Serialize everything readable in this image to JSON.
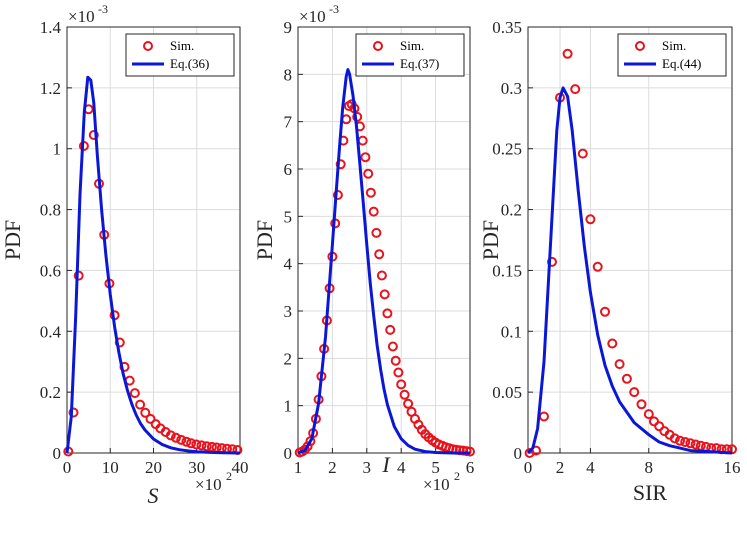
{
  "colors": {
    "sim": "#e8131c",
    "eq": "#0b17d8",
    "axis": "#262626",
    "grid": "#dcdcdc"
  },
  "chart_data": [
    {
      "type": "scatter",
      "title": "",
      "xlabel": "S",
      "ylabel": "PDF",
      "x_multiplier": "×10",
      "x_multiplier_exp": "2",
      "y_multiplier": "×10",
      "y_multiplier_exp": "-3",
      "xlim": [
        0,
        40
      ],
      "ylim": [
        0,
        1.4
      ],
      "xticks": [
        "0",
        "10",
        "20",
        "30",
        "40"
      ],
      "yticks": [
        "0",
        "0.2",
        "0.4",
        "0.6",
        "0.8",
        "1",
        "1.2",
        "1.4"
      ],
      "grid": true,
      "legend_position": "top-right",
      "series": [
        {
          "name": "Sim.",
          "style": "markers",
          "x": [
            0.3,
            1.5,
            2.7,
            3.9,
            5.0,
            6.2,
            7.4,
            8.6,
            9.8,
            11.0,
            12.2,
            13.3,
            14.5,
            15.7,
            16.9,
            18.1,
            19.3,
            20.5,
            21.6,
            22.8,
            24.0,
            25.2,
            26.4,
            27.6,
            28.7,
            29.9,
            31.1,
            32.3,
            33.5,
            34.6,
            35.8,
            37.0,
            38.2,
            39.4
          ],
          "y": [
            0.005,
            0.133,
            0.583,
            1.009,
            1.13,
            1.045,
            0.885,
            0.717,
            0.557,
            0.453,
            0.363,
            0.283,
            0.238,
            0.197,
            0.159,
            0.132,
            0.112,
            0.095,
            0.081,
            0.069,
            0.058,
            0.05,
            0.043,
            0.037,
            0.032,
            0.028,
            0.025,
            0.022,
            0.02,
            0.018,
            0.016,
            0.014,
            0.012,
            0.01
          ]
        },
        {
          "name": "Eq.(36)",
          "style": "line",
          "x": [
            0,
            1,
            2,
            3,
            4,
            4.8,
            5.5,
            6.2,
            7,
            8,
            9,
            10,
            11,
            12,
            13,
            14,
            15,
            16,
            17,
            18,
            20,
            22,
            24,
            26,
            28,
            30,
            33,
            36,
            40
          ],
          "y": [
            0,
            0.12,
            0.45,
            0.85,
            1.12,
            1.235,
            1.225,
            1.15,
            0.98,
            0.8,
            0.65,
            0.52,
            0.415,
            0.33,
            0.26,
            0.205,
            0.16,
            0.125,
            0.097,
            0.076,
            0.046,
            0.028,
            0.017,
            0.011,
            0.007,
            0.004,
            0.002,
            0.001,
            0.0
          ]
        }
      ]
    },
    {
      "type": "scatter",
      "title": "",
      "xlabel": "I",
      "ylabel": "PDF",
      "x_multiplier": "×10",
      "x_multiplier_exp": "2",
      "y_multiplier": "×10",
      "y_multiplier_exp": "-3",
      "xlim": [
        1,
        6
      ],
      "ylim": [
        0,
        9
      ],
      "xticks": [
        "1",
        "2",
        "3",
        "4",
        "5",
        "6"
      ],
      "yticks": [
        "0",
        "1",
        "2",
        "3",
        "4",
        "5",
        "6",
        "7",
        "8",
        "9"
      ],
      "grid": true,
      "legend_position": "top-right",
      "series": [
        {
          "name": "Sim.",
          "style": "markers",
          "x": [
            1.05,
            1.12,
            1.2,
            1.28,
            1.36,
            1.44,
            1.52,
            1.6,
            1.68,
            1.76,
            1.84,
            1.92,
            2.0,
            2.08,
            2.16,
            2.24,
            2.32,
            2.4,
            2.48,
            2.56,
            2.64,
            2.72,
            2.8,
            2.88,
            2.96,
            3.04,
            3.12,
            3.2,
            3.28,
            3.36,
            3.44,
            3.52,
            3.6,
            3.68,
            3.76,
            3.84,
            3.92,
            4.0,
            4.1,
            4.2,
            4.3,
            4.4,
            4.5,
            4.6,
            4.7,
            4.8,
            4.9,
            5.0,
            5.1,
            5.2,
            5.3,
            5.4,
            5.5,
            5.6,
            5.7,
            5.8,
            5.9,
            6.0
          ],
          "y": [
            0.01,
            0.03,
            0.07,
            0.14,
            0.25,
            0.42,
            0.72,
            1.13,
            1.62,
            2.2,
            2.8,
            3.48,
            4.15,
            4.85,
            5.45,
            6.1,
            6.6,
            7.05,
            7.33,
            7.37,
            7.28,
            7.1,
            6.9,
            6.6,
            6.25,
            5.9,
            5.5,
            5.1,
            4.65,
            4.2,
            3.75,
            3.35,
            2.95,
            2.6,
            2.25,
            1.95,
            1.7,
            1.45,
            1.23,
            1.04,
            0.87,
            0.72,
            0.6,
            0.49,
            0.4,
            0.33,
            0.27,
            0.22,
            0.18,
            0.15,
            0.12,
            0.1,
            0.08,
            0.07,
            0.06,
            0.05,
            0.04,
            0.03
          ]
        },
        {
          "name": "Eq.(37)",
          "style": "line",
          "x": [
            1.0,
            1.2,
            1.4,
            1.6,
            1.8,
            2.0,
            2.1,
            2.2,
            2.3,
            2.4,
            2.45,
            2.5,
            2.6,
            2.7,
            2.8,
            2.9,
            3.0,
            3.1,
            3.2,
            3.3,
            3.4,
            3.5,
            3.6,
            3.8,
            4.0,
            4.2,
            4.4,
            4.7,
            5.0,
            5.5,
            6.0
          ],
          "y": [
            0.0,
            0.05,
            0.3,
            1.05,
            2.45,
            4.4,
            5.4,
            6.4,
            7.3,
            7.95,
            8.1,
            8.0,
            7.55,
            6.9,
            6.1,
            5.25,
            4.4,
            3.6,
            2.9,
            2.28,
            1.77,
            1.35,
            1.02,
            0.56,
            0.3,
            0.16,
            0.08,
            0.03,
            0.01,
            0.0,
            0.0
          ]
        }
      ]
    },
    {
      "type": "scatter",
      "title": "",
      "xlabel": "SIR",
      "ylabel": "PDF",
      "xlim": [
        0,
        16
      ],
      "ylim": [
        0,
        0.35
      ],
      "xticks": [
        "0",
        "2",
        "4",
        "8",
        "16"
      ],
      "xtick_values": [
        0,
        2,
        4,
        8,
        16
      ],
      "x_scale": "custom-warped",
      "yticks": [
        "0",
        "0.05",
        "0.1",
        "0.15",
        "0.2",
        "0.25",
        "0.3",
        "0.35"
      ],
      "grid": true,
      "legend_position": "top-right",
      "series": [
        {
          "name": "Sim.",
          "style": "markers",
          "x": [
            0.1,
            0.5,
            1.0,
            1.5,
            2.0,
            2.5,
            3.0,
            3.5,
            4.0,
            4.5,
            5.0,
            5.5,
            6.0,
            6.5,
            7.0,
            7.5,
            8.0,
            8.5,
            9.0,
            9.5,
            10.0,
            10.5,
            11.0,
            11.5,
            12.0,
            12.5,
            13.0,
            13.5,
            14.0,
            14.5,
            15.0,
            15.5,
            16.0
          ],
          "y": [
            0.0,
            0.002,
            0.03,
            0.157,
            0.292,
            0.328,
            0.299,
            0.246,
            0.192,
            0.153,
            0.116,
            0.09,
            0.073,
            0.061,
            0.05,
            0.04,
            0.032,
            0.026,
            0.022,
            0.018,
            0.015,
            0.012,
            0.01,
            0.009,
            0.008,
            0.007,
            0.006,
            0.005,
            0.004,
            0.004,
            0.003,
            0.003,
            0.003
          ]
        },
        {
          "name": "Eq.(44)",
          "style": "line",
          "x": [
            0.0,
            0.3,
            0.6,
            1.0,
            1.4,
            1.8,
            2.0,
            2.2,
            2.5,
            2.8,
            3.2,
            3.6,
            4.0,
            4.5,
            5.0,
            5.5,
            6.0,
            7.0,
            8.0,
            9.0,
            10.0,
            11.0,
            12.0,
            14.0,
            16.0
          ],
          "y": [
            0.0,
            0.004,
            0.02,
            0.075,
            0.17,
            0.265,
            0.292,
            0.3,
            0.293,
            0.265,
            0.215,
            0.17,
            0.132,
            0.097,
            0.072,
            0.055,
            0.042,
            0.025,
            0.015,
            0.009,
            0.006,
            0.004,
            0.002,
            0.001,
            0.0
          ]
        }
      ]
    }
  ]
}
